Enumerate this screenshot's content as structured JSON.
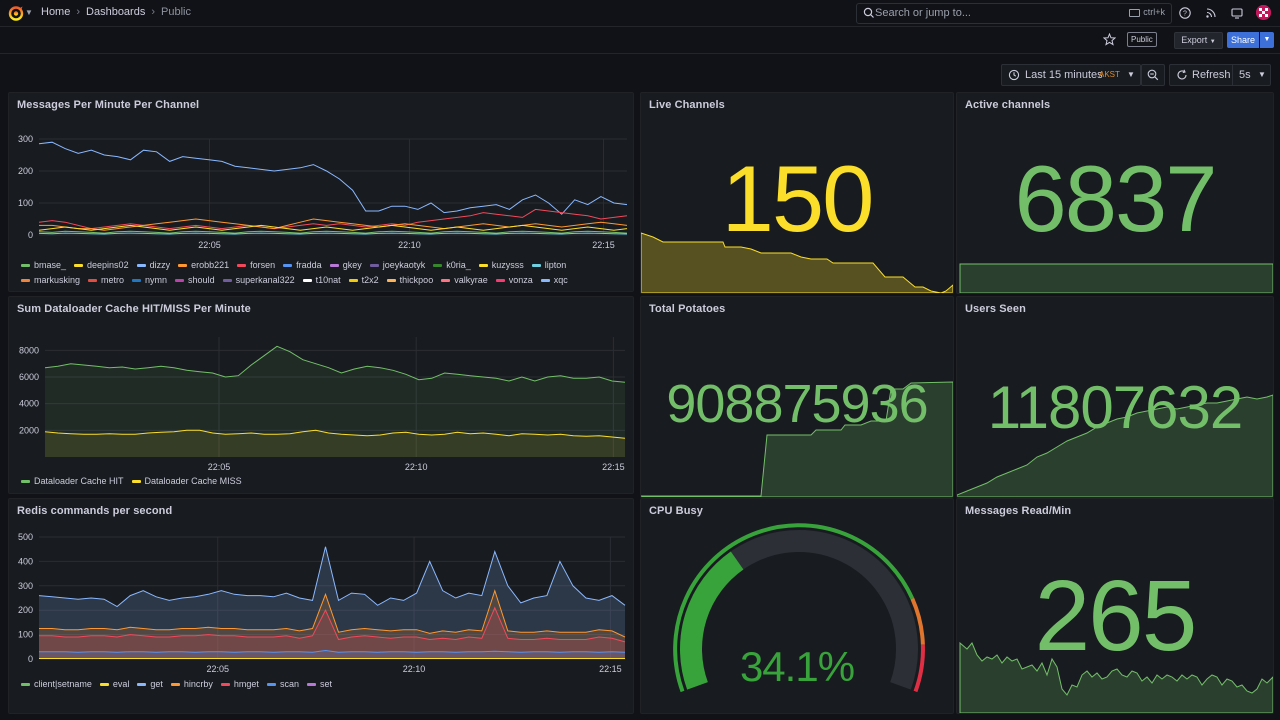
{
  "topbar": {
    "breadcrumb": [
      "Home",
      "Dashboards",
      "Public"
    ],
    "search_placeholder": "Search or jump to...",
    "search_shortcut": "ctrl+k"
  },
  "subbar": {
    "public_tag": "Public",
    "export_label": "Export",
    "share_label": "Share"
  },
  "controls": {
    "time_range": "Last 15 minutes",
    "timezone": "AKST",
    "refresh_label": "Refresh",
    "refresh_interval": "5s"
  },
  "colors": {
    "green": "#73bf69",
    "yellow": "#fade2a",
    "gauge_green": "#37a33a"
  },
  "panels": {
    "messages_per_minute": {
      "title": "Messages Per Minute Per Channel",
      "legend": [
        {
          "name": "bmase_",
          "color": "#73bf69"
        },
        {
          "name": "deepins02",
          "color": "#fade2a"
        },
        {
          "name": "dizzy",
          "color": "#8ab8ff"
        },
        {
          "name": "erobb221",
          "color": "#ff9830"
        },
        {
          "name": "forsen",
          "color": "#f2495c"
        },
        {
          "name": "fradda",
          "color": "#5794f2"
        },
        {
          "name": "gkey",
          "color": "#b877d9"
        },
        {
          "name": "joeykaotyk",
          "color": "#705da0"
        },
        {
          "name": "k0ria_",
          "color": "#37872d"
        },
        {
          "name": "kuzysss",
          "color": "#fade2a"
        },
        {
          "name": "lipton",
          "color": "#6ed0e0"
        },
        {
          "name": "markusking",
          "color": "#ef843c"
        },
        {
          "name": "metro",
          "color": "#e24d42"
        },
        {
          "name": "nymn",
          "color": "#1f78c1"
        },
        {
          "name": "should",
          "color": "#ba43a9"
        },
        {
          "name": "superkanal322",
          "color": "#705da0"
        },
        {
          "name": "t10nat",
          "color": "#ffffff"
        },
        {
          "name": "t2x2",
          "color": "#f2cc0c"
        },
        {
          "name": "thickpoo",
          "color": "#ffb357"
        },
        {
          "name": "valkyrae",
          "color": "#ff7383"
        },
        {
          "name": "vonza",
          "color": "#f43d73"
        },
        {
          "name": "xqc",
          "color": "#8ab8ff"
        }
      ]
    },
    "dataloader": {
      "title": "Sum Dataloader Cache HIT/MISS Per Minute",
      "legend": [
        {
          "name": "Dataloader Cache HIT",
          "color": "#73bf69"
        },
        {
          "name": "Dataloader Cache MISS",
          "color": "#fade2a"
        }
      ]
    },
    "redis": {
      "title": "Redis commands per second",
      "legend": [
        {
          "name": "client|setname",
          "color": "#73bf69"
        },
        {
          "name": "eval",
          "color": "#fade2a"
        },
        {
          "name": "get",
          "color": "#8ab8ff"
        },
        {
          "name": "hincrby",
          "color": "#ff9830"
        },
        {
          "name": "hmget",
          "color": "#f2495c"
        },
        {
          "name": "scan",
          "color": "#5794f2"
        },
        {
          "name": "set",
          "color": "#b877d9"
        }
      ]
    },
    "live_channels": {
      "title": "Live Channels",
      "value": "150"
    },
    "active_channels": {
      "title": "Active channels",
      "value": "6837"
    },
    "total_potatoes": {
      "title": "Total Potatoes",
      "value": "908875936"
    },
    "users_seen": {
      "title": "Users Seen",
      "value": "11807632"
    },
    "cpu_busy": {
      "title": "CPU Busy",
      "value": "34.1%",
      "percent": 34.1
    },
    "messages_read": {
      "title": "Messages Read/Min",
      "value": "265"
    }
  },
  "chart_data": [
    {
      "type": "line",
      "title": "Messages Per Minute Per Channel",
      "x_ticks": [
        "22:05",
        "22:10",
        "22:15"
      ],
      "ylim": [
        0,
        300
      ],
      "y_ticks": [
        0,
        100,
        200,
        300
      ],
      "series": [
        {
          "name": "dizzy",
          "color": "#8ab8ff",
          "values": [
            285,
            290,
            270,
            255,
            265,
            250,
            245,
            235,
            265,
            260,
            230,
            245,
            240,
            235,
            230,
            215,
            210,
            205,
            200,
            205,
            210,
            220,
            200,
            175,
            140,
            75,
            75,
            90,
            90,
            80,
            100,
            70,
            75,
            85,
            90,
            95,
            80,
            110,
            125,
            100,
            65,
            110,
            95,
            120,
            100,
            95
          ]
        },
        {
          "name": "forsen",
          "color": "#f2495c",
          "values": [
            40,
            45,
            40,
            30,
            20,
            25,
            30,
            35,
            30,
            25,
            20,
            25,
            30,
            25,
            20,
            25,
            30,
            25,
            20,
            25,
            30,
            35,
            30,
            35,
            30,
            25,
            30,
            35,
            30,
            40,
            45,
            50,
            55,
            60,
            70,
            65,
            60,
            55,
            80,
            75,
            70,
            65,
            60,
            50,
            55,
            60
          ]
        },
        {
          "name": "erobb221",
          "color": "#ff9830",
          "values": [
            30,
            30,
            25,
            20,
            20,
            15,
            20,
            25,
            30,
            35,
            40,
            45,
            50,
            45,
            40,
            35,
            30,
            25,
            20,
            30,
            40,
            50,
            45,
            40,
            35,
            30,
            25,
            30,
            35,
            30,
            25,
            20,
            25,
            30,
            35,
            30,
            25,
            30,
            35,
            30,
            25,
            30,
            35,
            40,
            35,
            30
          ]
        },
        {
          "name": "deepins02",
          "color": "#fade2a",
          "values": [
            15,
            20,
            25,
            20,
            15,
            20,
            25,
            30,
            25,
            20,
            15,
            20,
            25,
            20,
            15,
            20,
            25,
            30,
            25,
            20,
            15,
            20,
            25,
            20,
            15,
            20,
            25,
            30,
            25,
            20,
            15,
            20,
            25,
            20,
            15,
            20,
            25,
            30,
            25,
            20,
            15,
            20,
            25,
            20,
            15,
            20
          ]
        },
        {
          "name": "bmase_",
          "color": "#73bf69",
          "values": [
            10,
            8,
            12,
            10,
            8,
            6,
            10,
            12,
            10,
            8,
            6,
            10,
            12,
            10,
            8,
            6,
            10,
            12,
            10,
            8,
            6,
            10,
            12,
            10,
            8,
            6,
            10,
            12,
            10,
            8,
            6,
            10,
            12,
            10,
            8,
            6,
            10,
            12,
            10,
            8,
            6,
            10,
            12,
            10,
            8,
            6
          ]
        },
        {
          "name": "lipton",
          "color": "#6ed0e0",
          "values": [
            5,
            4,
            6,
            5,
            4,
            3,
            5,
            6,
            5,
            4,
            3,
            5,
            6,
            5,
            4,
            3,
            5,
            6,
            5,
            4,
            3,
            5,
            6,
            5,
            4,
            3,
            5,
            6,
            5,
            4,
            3,
            5,
            6,
            5,
            4,
            3,
            5,
            6,
            5,
            4,
            3,
            5,
            6,
            5,
            4,
            3
          ]
        }
      ]
    },
    {
      "type": "area",
      "title": "Sum Dataloader Cache HIT/MISS Per Minute",
      "x_ticks": [
        "22:05",
        "22:10",
        "22:15"
      ],
      "ylim": [
        0,
        9000
      ],
      "y_ticks": [
        2000,
        4000,
        6000,
        8000
      ],
      "series": [
        {
          "name": "Dataloader Cache HIT",
          "color": "#73bf69",
          "values": [
            6700,
            6800,
            7000,
            6900,
            6800,
            6700,
            6750,
            6600,
            6700,
            6800,
            6700,
            6500,
            6400,
            6300,
            6000,
            6100,
            6900,
            7600,
            8300,
            7900,
            7300,
            7000,
            6700,
            6300,
            6600,
            6800,
            6700,
            6500,
            6200,
            5800,
            5900,
            6300,
            6200,
            6100,
            6000,
            5900,
            5700,
            6000,
            5700,
            6000,
            6100,
            5900,
            5900,
            6000,
            5700,
            5600
          ]
        },
        {
          "name": "Dataloader Cache MISS",
          "color": "#fade2a",
          "values": [
            1900,
            1800,
            1750,
            1700,
            1700,
            1750,
            1700,
            1700,
            1800,
            1850,
            1900,
            2000,
            2000,
            1800,
            1700,
            1750,
            1800,
            1700,
            1700,
            1750,
            1900,
            2000,
            1800,
            1700,
            1650,
            1600,
            1650,
            1800,
            1850,
            1700,
            1650,
            1700,
            1850,
            1750,
            1800,
            1700,
            1600,
            1750,
            1700,
            1650,
            1700,
            1600,
            1550,
            1600,
            1500,
            1400
          ]
        }
      ]
    },
    {
      "type": "area",
      "title": "Redis commands per second",
      "x_ticks": [
        "22:05",
        "22:10",
        "22:15"
      ],
      "ylim": [
        0,
        500
      ],
      "y_ticks": [
        0,
        100,
        200,
        300,
        400,
        500
      ],
      "series": [
        {
          "name": "scan",
          "color": "#8ab8ff",
          "values": [
            260,
            255,
            250,
            245,
            250,
            245,
            215,
            260,
            280,
            255,
            240,
            250,
            255,
            265,
            280,
            265,
            260,
            260,
            255,
            270,
            250,
            240,
            460,
            240,
            270,
            265,
            220,
            250,
            240,
            270,
            400,
            280,
            250,
            270,
            260,
            440,
            300,
            230,
            250,
            260,
            400,
            300,
            250,
            240,
            260,
            220
          ]
        },
        {
          "name": "hincrby",
          "color": "#ff9830",
          "values": [
            125,
            125,
            120,
            120,
            125,
            125,
            120,
            130,
            125,
            120,
            120,
            125,
            125,
            130,
            125,
            125,
            120,
            120,
            120,
            125,
            115,
            125,
            265,
            110,
            120,
            125,
            120,
            115,
            120,
            120,
            105,
            115,
            110,
            120,
            115,
            280,
            115,
            110,
            110,
            115,
            110,
            110,
            110,
            120,
            115,
            90
          ]
        },
        {
          "name": "hmget",
          "color": "#f2495c",
          "values": [
            95,
            95,
            90,
            90,
            95,
            95,
            90,
            100,
            95,
            90,
            90,
            95,
            95,
            100,
            95,
            95,
            90,
            90,
            90,
            95,
            85,
            95,
            200,
            80,
            90,
            95,
            90,
            85,
            90,
            90,
            80,
            85,
            80,
            90,
            85,
            210,
            85,
            80,
            80,
            85,
            80,
            80,
            80,
            90,
            85,
            70
          ]
        },
        {
          "name": "get",
          "color": "#5794f2",
          "values": [
            30,
            30,
            30,
            28,
            30,
            30,
            28,
            30,
            30,
            28,
            30,
            30,
            28,
            30,
            30,
            28,
            30,
            30,
            28,
            30,
            30,
            28,
            35,
            28,
            30,
            30,
            28,
            30,
            30,
            28,
            30,
            30,
            28,
            30,
            30,
            32,
            30,
            28,
            30,
            30,
            28,
            30,
            30,
            28,
            30,
            28
          ]
        },
        {
          "name": "eval",
          "color": "#fade2a",
          "values": [
            2,
            2,
            2,
            2,
            2,
            2,
            2,
            2,
            2,
            2,
            2,
            2,
            2,
            2,
            2,
            2,
            2,
            2,
            2,
            2,
            2,
            2,
            2,
            2,
            2,
            2,
            2,
            2,
            2,
            2,
            2,
            2,
            2,
            2,
            2,
            2,
            2,
            2,
            2,
            2,
            2,
            2,
            2,
            2,
            2,
            2
          ]
        }
      ]
    }
  ]
}
